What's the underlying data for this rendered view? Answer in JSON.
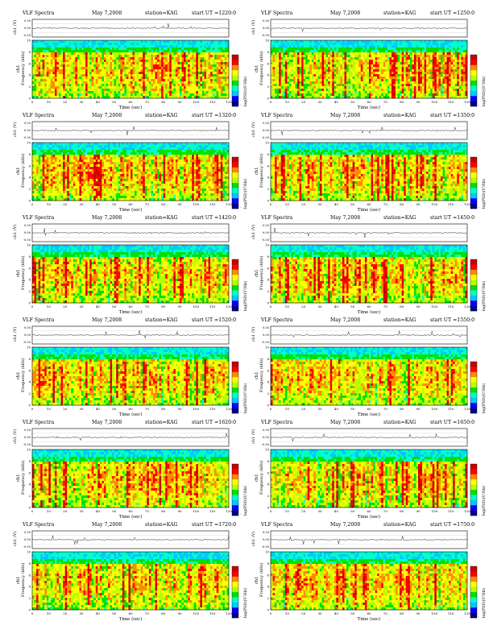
{
  "chart_data": {
    "type": "heatmap",
    "common": {
      "time_axis_label": "Time (sec)",
      "time_ticks": [
        "0",
        "10",
        "20",
        "30",
        "40",
        "50",
        "60",
        "70",
        "80",
        "90",
        "100",
        "110",
        "120"
      ],
      "xlim": [
        0,
        120
      ],
      "ch_axis_label": "ch1 (V)",
      "ch_ticks": [
        "0.50",
        "0.00",
        "-0.50"
      ],
      "freq_axis_label": "Frequency (kHz)",
      "freq_ticks": [
        "0",
        "2",
        "4",
        "6",
        "8",
        "10"
      ],
      "ylim": [
        0,
        10
      ],
      "channel_tag": "ch1",
      "colorbar_label": "log(PSD)(V²/Hz)",
      "colorbar_tick": "-"
    },
    "panels": [
      {
        "title": "VLF Spectra",
        "date": "May 7,2008",
        "station": "station=KAG",
        "start": "start  UT  =1220:0"
      },
      {
        "title": "VLF Spectra",
        "date": "May 7,2008",
        "station": "station=KAG",
        "start": "start  UT  =1250:0"
      },
      {
        "title": "VLF Spectra",
        "date": "May 7,2008",
        "station": "station=KAG",
        "start": "start  UT  =1320:0"
      },
      {
        "title": "VLF Spectra",
        "date": "May 7,2008",
        "station": "station=KAG",
        "start": "start  UT  =1350:0"
      },
      {
        "title": "VLF Spectra",
        "date": "May 7,2008",
        "station": "station=KAG",
        "start": "start  UT  =1420:0"
      },
      {
        "title": "VLF Spectra",
        "date": "May 7,2008",
        "station": "station=KAG",
        "start": "start  UT  =1450:0"
      },
      {
        "title": "VLF Spectra",
        "date": "May 7,2008",
        "station": "station=KAG",
        "start": "start  UT  =1520:0"
      },
      {
        "title": "VLF Spectra",
        "date": "May 7,2008",
        "station": "station=KAG",
        "start": "start  UT  =1550:0"
      },
      {
        "title": "VLF Spectra",
        "date": "May 7,2008",
        "station": "station=KAG",
        "start": "start  UT  =1620:0"
      },
      {
        "title": "VLF Spectra",
        "date": "May 7,2008",
        "station": "station=KAG",
        "start": "start  UT  =1650:0"
      },
      {
        "title": "VLF Spectra",
        "date": "May 7,2008",
        "station": "station=KAG",
        "start": "start  UT  =1720:0"
      },
      {
        "title": "VLF Spectra",
        "date": "May 7,2008",
        "station": "station=KAG",
        "start": "start  UT  =1750:0"
      }
    ],
    "colors": {
      "scale": [
        "#00008b",
        "#0000ff",
        "#00c8ff",
        "#00ffc8",
        "#00e000",
        "#b4ff00",
        "#ffff00",
        "#ff8c00",
        "#ff0000",
        "#c80000"
      ]
    }
  }
}
